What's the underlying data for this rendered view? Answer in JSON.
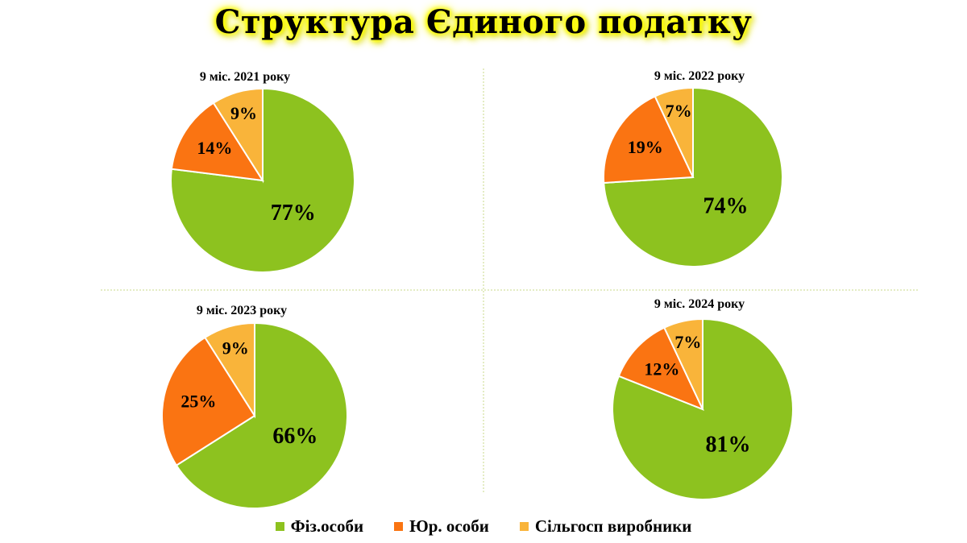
{
  "title": "Структура Єдиного податку",
  "colors": {
    "Фіз.особи": "#8dc21f",
    "Юр. особи": "#fa7412",
    "Сільгосп виробники": "#f9b43a",
    "divider": "#c8d98a"
  },
  "legend": [
    "Фіз.особи",
    "Юр. особи",
    "Сільгосп виробники"
  ],
  "chart_data": [
    {
      "type": "pie",
      "title": "9 міс. 2021 року",
      "categories": [
        "Фіз.особи",
        "Юр. особи",
        "Сільгосп виробники"
      ],
      "values": [
        77,
        14,
        9
      ],
      "labels": [
        "77%",
        "14%",
        "9%"
      ]
    },
    {
      "type": "pie",
      "title": "9 міс. 2022 року",
      "categories": [
        "Фіз.особи",
        "Юр. особи",
        "Сільгосп виробники"
      ],
      "values": [
        74,
        19,
        7
      ],
      "labels": [
        "74%",
        "19%",
        "7%"
      ]
    },
    {
      "type": "pie",
      "title": "9 міс. 2023 року",
      "categories": [
        "Фіз.особи",
        "Юр. особи",
        "Сільгосп виробники"
      ],
      "values": [
        66,
        25,
        9
      ],
      "labels": [
        "66%",
        "25%",
        "9%"
      ]
    },
    {
      "type": "pie",
      "title": "9 міс. 2024 року",
      "categories": [
        "Фіз.особи",
        "Юр. особи",
        "Сільгосп виробники"
      ],
      "values": [
        81,
        12,
        7
      ],
      "labels": [
        "81%",
        "12%",
        "7%"
      ]
    }
  ]
}
